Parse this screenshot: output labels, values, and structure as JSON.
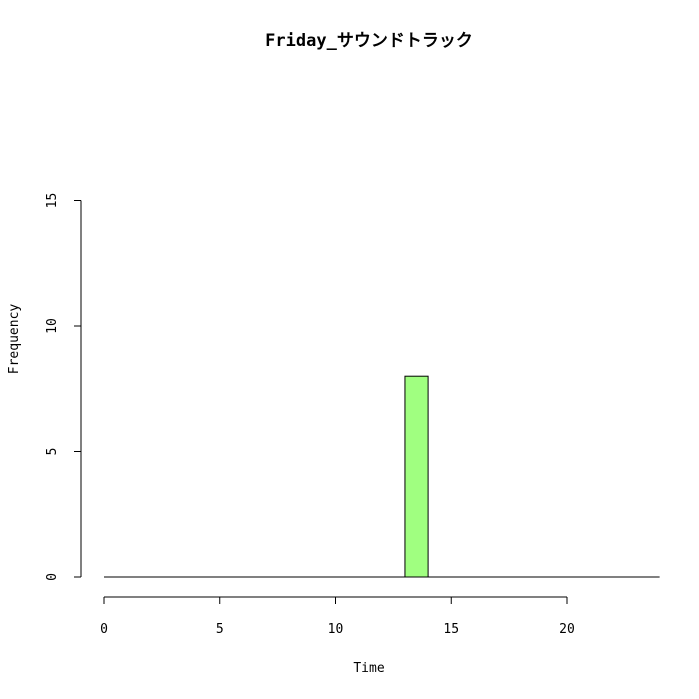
{
  "chart_data": {
    "type": "bar",
    "title": "Friday_サウンドトラック",
    "xlabel": "Time",
    "ylabel": "Frequency",
    "x_ticks": [
      0,
      5,
      10,
      15,
      20
    ],
    "y_ticks": [
      0,
      5,
      10,
      15
    ],
    "xlim": [
      0,
      24
    ],
    "ylim": [
      0,
      15
    ],
    "bin_width": 1,
    "bins": [
      {
        "start": 0,
        "end": 1,
        "count": 0
      },
      {
        "start": 1,
        "end": 2,
        "count": 0
      },
      {
        "start": 2,
        "end": 3,
        "count": 0
      },
      {
        "start": 3,
        "end": 4,
        "count": 0
      },
      {
        "start": 4,
        "end": 5,
        "count": 0
      },
      {
        "start": 5,
        "end": 6,
        "count": 0
      },
      {
        "start": 6,
        "end": 7,
        "count": 0
      },
      {
        "start": 7,
        "end": 8,
        "count": 0
      },
      {
        "start": 8,
        "end": 9,
        "count": 0
      },
      {
        "start": 9,
        "end": 10,
        "count": 0
      },
      {
        "start": 10,
        "end": 11,
        "count": 0
      },
      {
        "start": 11,
        "end": 12,
        "count": 0
      },
      {
        "start": 12,
        "end": 13,
        "count": 0
      },
      {
        "start": 13,
        "end": 14,
        "count": 8
      },
      {
        "start": 14,
        "end": 15,
        "count": 0
      },
      {
        "start": 15,
        "end": 16,
        "count": 0
      },
      {
        "start": 16,
        "end": 17,
        "count": 0
      },
      {
        "start": 17,
        "end": 18,
        "count": 0
      },
      {
        "start": 18,
        "end": 19,
        "count": 0
      },
      {
        "start": 19,
        "end": 20,
        "count": 0
      },
      {
        "start": 20,
        "end": 21,
        "count": 0
      },
      {
        "start": 21,
        "end": 22,
        "count": 0
      },
      {
        "start": 22,
        "end": 23,
        "count": 0
      },
      {
        "start": 23,
        "end": 24,
        "count": 0
      }
    ],
    "bar_color": "#a0ff80",
    "grid": false,
    "legend": "none"
  }
}
